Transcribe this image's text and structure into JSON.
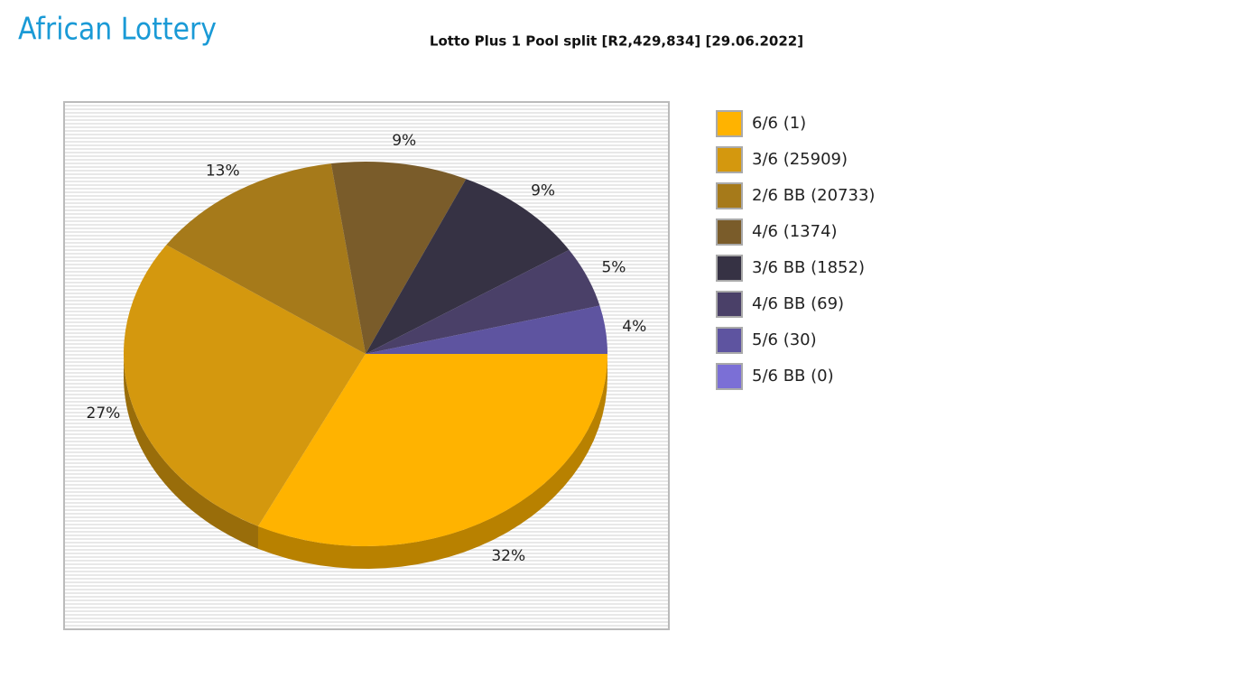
{
  "logo": "African Lottery",
  "chart_data": {
    "type": "pie",
    "title": "Lotto Plus 1 Pool split [R2,429,834] [29.06.2022]",
    "categories": [
      "6/6 (1)",
      "3/6 (25909)",
      "2/6 BB (20733)",
      "4/6 (1374)",
      "3/6 BB (1852)",
      "4/6 BB (69)",
      "5/6 (30)",
      "5/6 BB (0)"
    ],
    "values": [
      32,
      27,
      13,
      9,
      9,
      5,
      4,
      0
    ],
    "value_labels": [
      "32%",
      "27%",
      "13%",
      "9%",
      "9%",
      "5%",
      "4%",
      null
    ],
    "colors": [
      "#ffb300",
      "#d4980e",
      "#a67a1a",
      "#7a5c2a",
      "#363244",
      "#4a4068",
      "#5e54a0",
      "#7b6fd6"
    ],
    "legend": "right"
  }
}
